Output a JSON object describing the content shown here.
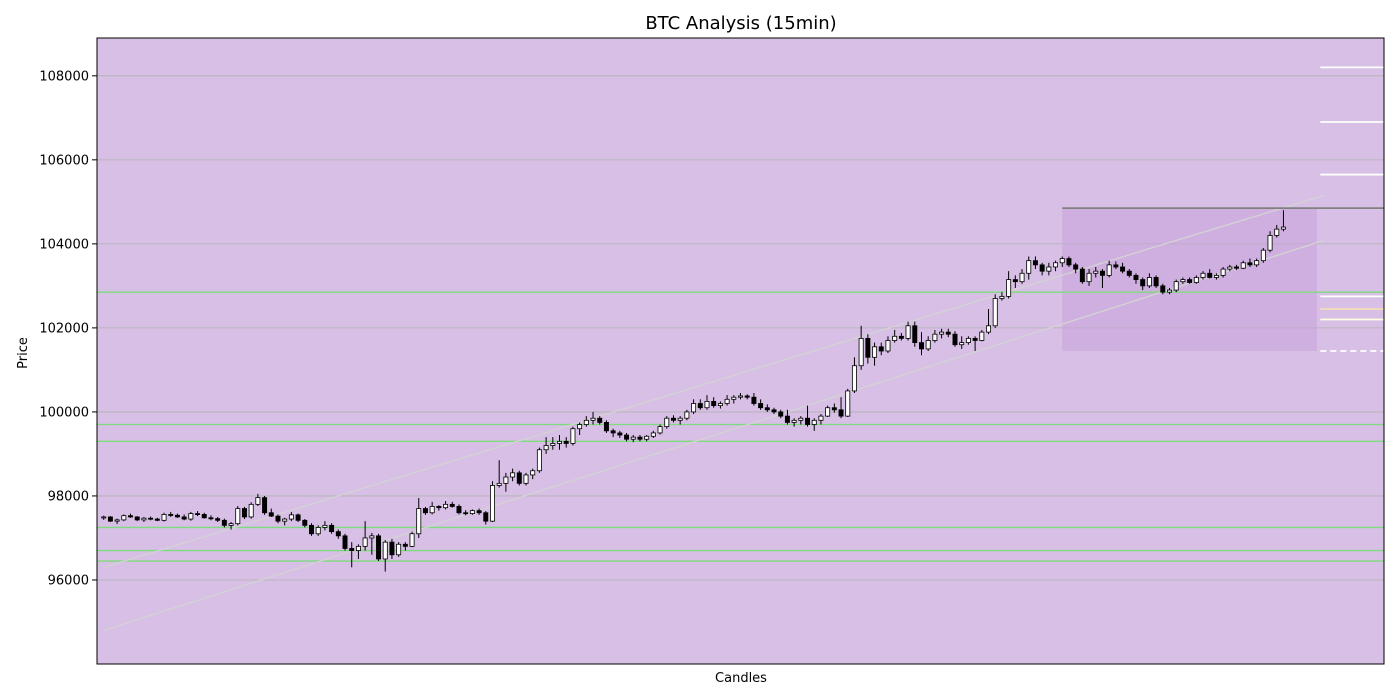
{
  "chart_data": {
    "type": "candlestick",
    "title": "BTC Analysis (15min)",
    "xlabel": "Candles",
    "ylabel": "Price",
    "ylim": [
      94000,
      108900
    ],
    "y_ticks": [
      96000,
      98000,
      100000,
      102000,
      104000,
      106000,
      108000
    ],
    "x_ticks_shown": false,
    "grid": "horizontal",
    "background_color": "#d8bfe6",
    "colors": {
      "bull": "#ffffff",
      "bear": "#000000",
      "wick": "#000000",
      "support_resistance": "#7ddc7d",
      "trend_channel": "#d3d3d3"
    },
    "candles_ohlc": [
      [
        97480,
        97530,
        97430,
        97500
      ],
      [
        97500,
        97520,
        97380,
        97400
      ],
      [
        97400,
        97460,
        97330,
        97430
      ],
      [
        97430,
        97560,
        97400,
        97530
      ],
      [
        97530,
        97580,
        97480,
        97500
      ],
      [
        97500,
        97520,
        97400,
        97430
      ],
      [
        97430,
        97500,
        97380,
        97470
      ],
      [
        97470,
        97510,
        97420,
        97450
      ],
      [
        97450,
        97480,
        97400,
        97420
      ],
      [
        97420,
        97600,
        97390,
        97560
      ],
      [
        97560,
        97620,
        97500,
        97540
      ],
      [
        97540,
        97580,
        97480,
        97500
      ],
      [
        97500,
        97560,
        97420,
        97450
      ],
      [
        97450,
        97620,
        97410,
        97580
      ],
      [
        97580,
        97640,
        97520,
        97560
      ],
      [
        97560,
        97600,
        97460,
        97480
      ],
      [
        97480,
        97540,
        97420,
        97460
      ],
      [
        97460,
        97500,
        97380,
        97420
      ],
      [
        97420,
        97460,
        97250,
        97300
      ],
      [
        97300,
        97380,
        97200,
        97340
      ],
      [
        97340,
        97760,
        97300,
        97700
      ],
      [
        97700,
        97740,
        97450,
        97500
      ],
      [
        97500,
        97850,
        97460,
        97800
      ],
      [
        97800,
        98050,
        97760,
        97960
      ],
      [
        97960,
        98000,
        97550,
        97600
      ],
      [
        97600,
        97700,
        97500,
        97520
      ],
      [
        97520,
        97560,
        97350,
        97400
      ],
      [
        97400,
        97480,
        97300,
        97450
      ],
      [
        97450,
        97620,
        97400,
        97550
      ],
      [
        97550,
        97580,
        97380,
        97420
      ],
      [
        97420,
        97450,
        97250,
        97300
      ],
      [
        97300,
        97350,
        97050,
        97100
      ],
      [
        97100,
        97300,
        97050,
        97250
      ],
      [
        97250,
        97400,
        97180,
        97300
      ],
      [
        97300,
        97350,
        97100,
        97150
      ],
      [
        97150,
        97200,
        96980,
        97050
      ],
      [
        97050,
        97100,
        96700,
        96750
      ],
      [
        96750,
        96900,
        96300,
        96700
      ],
      [
        96700,
        96850,
        96500,
        96800
      ],
      [
        96800,
        97400,
        96700,
        97000
      ],
      [
        97000,
        97120,
        96600,
        97050
      ],
      [
        97050,
        97100,
        96450,
        96500
      ],
      [
        96500,
        96950,
        96200,
        96900
      ],
      [
        96900,
        96980,
        96500,
        96600
      ],
      [
        96600,
        96900,
        96550,
        96850
      ],
      [
        96850,
        96900,
        96700,
        96800
      ],
      [
        96800,
        97150,
        96780,
        97100
      ],
      [
        97100,
        97950,
        97000,
        97700
      ],
      [
        97700,
        97740,
        97550,
        97600
      ],
      [
        97600,
        97860,
        97560,
        97750
      ],
      [
        97750,
        97780,
        97650,
        97720
      ],
      [
        97720,
        97880,
        97680,
        97800
      ],
      [
        97800,
        97860,
        97720,
        97750
      ],
      [
        97750,
        97800,
        97560,
        97600
      ],
      [
        97600,
        97660,
        97540,
        97580
      ],
      [
        97580,
        97680,
        97550,
        97650
      ],
      [
        97650,
        97700,
        97550,
        97600
      ],
      [
        97600,
        97640,
        97320,
        97400
      ],
      [
        97400,
        98350,
        97380,
        98250
      ],
      [
        98250,
        98850,
        98200,
        98300
      ],
      [
        98300,
        98550,
        98100,
        98450
      ],
      [
        98450,
        98650,
        98350,
        98550
      ],
      [
        98550,
        98600,
        98250,
        98300
      ],
      [
        98300,
        98550,
        98250,
        98500
      ],
      [
        98500,
        98650,
        98400,
        98600
      ],
      [
        98600,
        99150,
        98550,
        99100
      ],
      [
        99100,
        99400,
        99000,
        99200
      ],
      [
        99200,
        99400,
        99100,
        99250
      ],
      [
        99250,
        99450,
        99100,
        99300
      ],
      [
        99300,
        99400,
        99150,
        99250
      ],
      [
        99250,
        99650,
        99200,
        99600
      ],
      [
        99600,
        99750,
        99450,
        99700
      ],
      [
        99700,
        99900,
        99650,
        99800
      ],
      [
        99800,
        100000,
        99700,
        99850
      ],
      [
        99850,
        99900,
        99700,
        99750
      ],
      [
        99750,
        99800,
        99500,
        99550
      ],
      [
        99550,
        99600,
        99400,
        99500
      ],
      [
        99500,
        99550,
        99380,
        99450
      ],
      [
        99450,
        99500,
        99300,
        99350
      ],
      [
        99350,
        99450,
        99280,
        99400
      ],
      [
        99400,
        99450,
        99300,
        99350
      ],
      [
        99350,
        99450,
        99300,
        99420
      ],
      [
        99420,
        99550,
        99380,
        99500
      ],
      [
        99500,
        99700,
        99460,
        99650
      ],
      [
        99650,
        99900,
        99600,
        99850
      ],
      [
        99850,
        99920,
        99750,
        99800
      ],
      [
        99800,
        99900,
        99700,
        99850
      ],
      [
        99850,
        100050,
        99800,
        100000
      ],
      [
        100000,
        100300,
        99950,
        100200
      ],
      [
        100200,
        100300,
        100050,
        100100
      ],
      [
        100100,
        100400,
        100050,
        100250
      ],
      [
        100250,
        100350,
        100100,
        100150
      ],
      [
        100150,
        100250,
        100080,
        100200
      ],
      [
        100200,
        100400,
        100150,
        100300
      ],
      [
        100300,
        100400,
        100200,
        100350
      ],
      [
        100350,
        100450,
        100300,
        100380
      ],
      [
        100380,
        100420,
        100300,
        100350
      ],
      [
        100350,
        100450,
        100150,
        100200
      ],
      [
        100200,
        100300,
        100050,
        100100
      ],
      [
        100100,
        100180,
        100000,
        100050
      ],
      [
        100050,
        100100,
        99950,
        100000
      ],
      [
        100000,
        100050,
        99850,
        99900
      ],
      [
        99900,
        100050,
        99700,
        99750
      ],
      [
        99750,
        99850,
        99650,
        99800
      ],
      [
        99800,
        99900,
        99700,
        99850
      ],
      [
        99850,
        100150,
        99650,
        99700
      ],
      [
        99700,
        99850,
        99550,
        99800
      ],
      [
        99800,
        99950,
        99700,
        99900
      ],
      [
        99900,
        100150,
        99880,
        100100
      ],
      [
        100100,
        100200,
        99980,
        100050
      ],
      [
        100050,
        100350,
        99850,
        99900
      ],
      [
        99900,
        100550,
        99880,
        100500
      ],
      [
        100500,
        101300,
        100450,
        101100
      ],
      [
        101100,
        102050,
        101000,
        101750
      ],
      [
        101750,
        101850,
        101150,
        101300
      ],
      [
        101300,
        101650,
        101100,
        101550
      ],
      [
        101550,
        101650,
        101350,
        101450
      ],
      [
        101450,
        101800,
        101400,
        101700
      ],
      [
        101700,
        101950,
        101650,
        101800
      ],
      [
        101800,
        101880,
        101700,
        101750
      ],
      [
        101750,
        102150,
        101700,
        102050
      ],
      [
        102050,
        102150,
        101550,
        101650
      ],
      [
        101650,
        101900,
        101350,
        101500
      ],
      [
        101500,
        101800,
        101450,
        101700
      ],
      [
        101700,
        101950,
        101650,
        101850
      ],
      [
        101850,
        101980,
        101750,
        101900
      ],
      [
        101900,
        101980,
        101780,
        101850
      ],
      [
        101850,
        101920,
        101550,
        101600
      ],
      [
        101600,
        101800,
        101500,
        101650
      ],
      [
        101650,
        101800,
        101600,
        101750
      ],
      [
        101750,
        101800,
        101450,
        101700
      ],
      [
        101700,
        101950,
        101680,
        101900
      ],
      [
        101900,
        102450,
        101850,
        102050
      ],
      [
        102050,
        102800,
        102000,
        102700
      ],
      [
        102700,
        102850,
        102650,
        102750
      ],
      [
        102750,
        103350,
        102700,
        103150
      ],
      [
        103150,
        103250,
        102950,
        103100
      ],
      [
        103100,
        103400,
        103050,
        103300
      ],
      [
        103300,
        103700,
        103150,
        103600
      ],
      [
        103600,
        103700,
        103400,
        103500
      ],
      [
        103500,
        103550,
        103250,
        103350
      ],
      [
        103350,
        103550,
        103250,
        103450
      ],
      [
        103450,
        103600,
        103350,
        103550
      ],
      [
        103550,
        103700,
        103450,
        103650
      ],
      [
        103650,
        103700,
        103450,
        103500
      ],
      [
        103500,
        103550,
        103300,
        103400
      ],
      [
        103400,
        103450,
        103050,
        103100
      ],
      [
        103100,
        103400,
        103000,
        103300
      ],
      [
        103300,
        103450,
        103200,
        103350
      ],
      [
        103350,
        103400,
        102950,
        103250
      ],
      [
        103250,
        103600,
        103200,
        103500
      ],
      [
        103500,
        103580,
        103400,
        103450
      ],
      [
        103450,
        103550,
        103300,
        103350
      ],
      [
        103350,
        103400,
        103200,
        103250
      ],
      [
        103250,
        103300,
        103050,
        103150
      ],
      [
        103150,
        103200,
        102900,
        103000
      ],
      [
        103000,
        103300,
        102950,
        103200
      ],
      [
        103200,
        103250,
        102950,
        103000
      ],
      [
        103000,
        103050,
        102800,
        102850
      ],
      [
        102850,
        102950,
        102800,
        102900
      ],
      [
        102900,
        103150,
        102850,
        103100
      ],
      [
        103100,
        103200,
        103050,
        103150
      ],
      [
        103150,
        103200,
        103050,
        103080
      ],
      [
        103080,
        103250,
        103050,
        103200
      ],
      [
        103200,
        103350,
        103150,
        103300
      ],
      [
        103300,
        103400,
        103180,
        103200
      ],
      [
        103200,
        103300,
        103150,
        103250
      ],
      [
        103250,
        103450,
        103200,
        103400
      ],
      [
        103400,
        103500,
        103350,
        103450
      ],
      [
        103450,
        103500,
        103380,
        103420
      ],
      [
        103420,
        103600,
        103400,
        103550
      ],
      [
        103550,
        103650,
        103450,
        103500
      ],
      [
        103500,
        103650,
        103450,
        103600
      ],
      [
        103600,
        103900,
        103550,
        103850
      ],
      [
        103850,
        104300,
        103800,
        104200
      ],
      [
        104200,
        104450,
        104150,
        104350
      ],
      [
        104350,
        104800,
        104300,
        104400
      ]
    ],
    "horizontal_levels_green": [
      102850,
      99700,
      99300,
      97250,
      96700,
      96450
    ],
    "trend_channel": [
      {
        "x": [
          0,
          182
        ],
        "y": [
          96300,
          105150
        ]
      },
      {
        "x": [
          0,
          182
        ],
        "y": [
          94800,
          104080
        ]
      }
    ],
    "highlight_zone": {
      "x_start": 143,
      "x_end": 181,
      "y_range": [
        101450,
        104850
      ],
      "color": "#c9a3d8"
    },
    "right_levels": [
      {
        "y": 108200,
        "color": "#ffffff",
        "style": "solid"
      },
      {
        "y": 106900,
        "color": "#ffffff",
        "style": "solid"
      },
      {
        "y": 105650,
        "color": "#ffffff",
        "style": "solid"
      },
      {
        "y": 104850,
        "color": "#808080",
        "style": "solid"
      },
      {
        "y": 102750,
        "color": "#ffffff",
        "style": "solid"
      },
      {
        "y": 102450,
        "color": "#f5deb3",
        "style": "solid"
      },
      {
        "y": 102200,
        "color": "#ffffe0",
        "style": "solid"
      },
      {
        "y": 101450,
        "color": "#ffffff",
        "style": "dashed"
      }
    ],
    "x_extent": [
      -1,
      191
    ]
  }
}
